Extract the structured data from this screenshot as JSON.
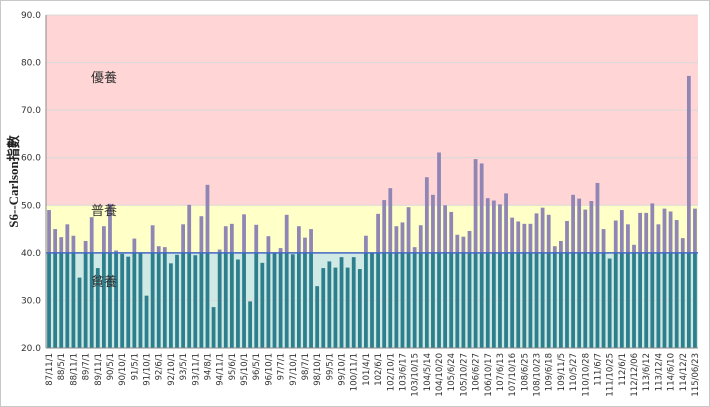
{
  "chart_data": {
    "type": "bar",
    "title": "",
    "xlabel": "",
    "ylabel": "S6--Carlson指數",
    "ylim": [
      20,
      90
    ],
    "yticks": [
      20,
      30,
      40,
      50,
      60,
      70,
      80,
      90
    ],
    "ytick_labels": [
      "20.0",
      "30.0",
      "40.0",
      "50.0",
      "60.0",
      "70.0",
      "80.0",
      "90.0"
    ],
    "bands": [
      {
        "name": "貧養",
        "from": 20,
        "to": 40,
        "color": "#cfe9e4"
      },
      {
        "name": "普養",
        "from": 40,
        "to": 50,
        "color": "#ffffc8"
      },
      {
        "name": "優養",
        "from": 50,
        "to": 90,
        "color": "#ffd5d5"
      }
    ],
    "reference_lines": [
      40
    ],
    "colors": {
      "bar_below_40": "#2d7f8e",
      "bar_above_40": "#8f86b6",
      "reference_line": "#4666c6",
      "axis": "#888888"
    },
    "xtick_labels": [
      "87/11/1",
      "88/5/1",
      "88/11/1",
      "89/7/1",
      "89/11/1",
      "90/5/1",
      "90/10/1",
      "91/5/1",
      "91/10/1",
      "92/6/1",
      "92/10/1",
      "93/5/1",
      "93/11/1",
      "94/8/1",
      "94/11/1",
      "95/6/1",
      "95/10/1",
      "96/5/1",
      "96/10/1",
      "97/7/1",
      "97/10/1",
      "98/7/1",
      "98/10/1",
      "99/5/1",
      "99/10/1",
      "100/11/1",
      "101/4/1",
      "102/6/1",
      "102/10/1",
      "103/6/17",
      "103/10/15",
      "104/5/14",
      "104/10/20",
      "105/6/24",
      "105/10/27",
      "106/6/27",
      "106/10/17",
      "107/6/13",
      "107/10/16",
      "108/6/25",
      "108/10/23",
      "109/6/18",
      "109/11/5",
      "110/5/27",
      "110/10/28",
      "111/6/7",
      "111/10/25",
      "112/6/1",
      "112/12/06",
      "113/6/12",
      "113/12/4",
      "114/6/10",
      "114/12/2",
      "115/06/23"
    ],
    "values": [
      49.0,
      45.0,
      43.3,
      46.0,
      43.6,
      34.8,
      42.5,
      47.5,
      36.8,
      45.6,
      50.3,
      40.5,
      39.8,
      39.2,
      43.0,
      40.0,
      31.0,
      45.8,
      41.4,
      41.2,
      37.8,
      39.6,
      46.0,
      50.1,
      39.5,
      47.7,
      54.3,
      28.6,
      40.7,
      45.6,
      46.1,
      38.6,
      48.1,
      29.8,
      45.9,
      37.9,
      43.5,
      40.0,
      41.0,
      48.0,
      39.7,
      45.6,
      43.2,
      45.0,
      33.0,
      36.8,
      38.2,
      36.9,
      39.1,
      36.9,
      39.1,
      36.6,
      43.6,
      40.0,
      48.2,
      51.1,
      53.6,
      45.6,
      46.4,
      49.6,
      41.2,
      45.8,
      55.9,
      52.2,
      61.1,
      50.0,
      48.6,
      43.8,
      43.4,
      44.6,
      59.7,
      58.8,
      51.5,
      51.0,
      50.2,
      52.5,
      47.4,
      46.6,
      46.1,
      46.1,
      48.3,
      49.5,
      48.0,
      41.4,
      42.5,
      46.7,
      52.2,
      51.4,
      49.1,
      50.9,
      54.7,
      45.0,
      38.8,
      46.8,
      49.0,
      46.0,
      41.7,
      48.4,
      48.4,
      50.4,
      46.0,
      49.3,
      48.7,
      46.9,
      43.1,
      77.2,
      49.3
    ]
  }
}
